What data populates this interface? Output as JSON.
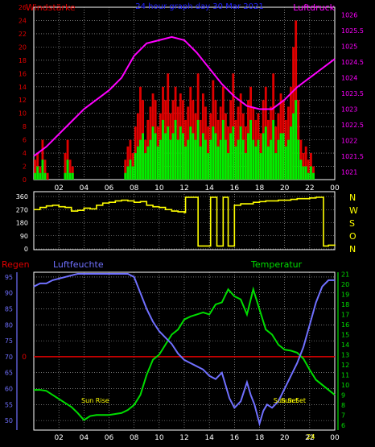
{
  "colors": {
    "wind": "#e00000",
    "gust": "#00ee00",
    "pressure": "#ff00ff",
    "direction": "#ffff00",
    "humidity": "#7070ff",
    "temperature": "#00dd00",
    "rain": "#e00000",
    "frame": "#ffffff",
    "grid": "#b8b8b8"
  },
  "chart_data": [
    {
      "type": "bar",
      "title": "24 hour graph day 30 Mar 2021",
      "left_label": "Windstärke",
      "right_label": "Luftdruck",
      "x_ticks": [
        "02",
        "04",
        "06",
        "08",
        "10",
        "12",
        "14",
        "16",
        "18",
        "20",
        "22",
        "00"
      ],
      "y_left_ticks": [
        "0",
        "2",
        "4",
        "6",
        "8",
        "10",
        "12",
        "14",
        "16",
        "18",
        "20",
        "22",
        "24",
        "26"
      ],
      "y_left_range": [
        0,
        26
      ],
      "y_right_ticks": [
        "1021",
        "1021.5",
        "1022",
        "1022.5",
        "1023",
        "1023.5",
        "1024",
        "1024.5",
        "1025",
        "1025.5",
        "1026"
      ],
      "y_right_range": [
        1020.75,
        1026.25
      ],
      "grid": true,
      "series": [
        {
          "kind": "bar",
          "role": "wind",
          "x": [
            0.1,
            0.3,
            0.5,
            0.7,
            0.9,
            1.1,
            1.3,
            1.5,
            1.7,
            1.9,
            2.1,
            2.3,
            2.5,
            2.7,
            2.9,
            3.1,
            3.3,
            3.5,
            3.7,
            3.9,
            4.1,
            4.3,
            4.5,
            4.7,
            4.9,
            5.1,
            5.3,
            5.5,
            5.7,
            5.9,
            6.1,
            6.3,
            6.5,
            6.7,
            6.9,
            7.1,
            7.3,
            7.5,
            7.7,
            7.9,
            8.1,
            8.3,
            8.5,
            8.7,
            8.9,
            9.1,
            9.3,
            9.5,
            9.7,
            9.9,
            10.1,
            10.3,
            10.5,
            10.7,
            10.9,
            11.1,
            11.3,
            11.5,
            11.7,
            11.9,
            12.1,
            12.3,
            12.5,
            12.7,
            12.9,
            13.1,
            13.3,
            13.5,
            13.7,
            13.9,
            14.1,
            14.3,
            14.5,
            14.7,
            14.9,
            15.1,
            15.3,
            15.5,
            15.7,
            15.9,
            16.1,
            16.3,
            16.5,
            16.7,
            16.9,
            17.1,
            17.3,
            17.5,
            17.7,
            17.9,
            18.1,
            18.3,
            18.5,
            18.7,
            18.9,
            19.1,
            19.3,
            19.5,
            19.7,
            19.9,
            20.1,
            20.3,
            20.5,
            20.7,
            20.9,
            21.1,
            21.3,
            21.5,
            21.7,
            21.9,
            22.1,
            22.3,
            22.5,
            22.7,
            22.9,
            23.1,
            23.3,
            23.5,
            23.7,
            23.9
          ],
          "values": [
            3,
            4,
            2,
            6,
            3,
            1,
            0,
            0,
            0,
            0,
            0,
            0,
            4,
            6,
            3,
            2,
            0,
            0,
            0,
            0,
            0,
            0,
            0,
            0,
            0,
            0,
            0,
            0,
            0,
            0,
            0,
            0,
            0,
            0,
            0,
            0,
            3,
            5,
            6,
            4,
            8,
            10,
            14,
            12,
            6,
            9,
            11,
            13,
            12,
            8,
            10,
            14,
            12,
            16,
            10,
            12,
            14,
            11,
            13,
            12,
            9,
            11,
            14,
            12,
            10,
            16,
            9,
            13,
            11,
            8,
            10,
            15,
            12,
            9,
            11,
            14,
            10,
            8,
            12,
            16,
            9,
            11,
            13,
            10,
            8,
            12,
            14,
            11,
            9,
            10,
            7,
            12,
            14,
            9,
            11,
            16,
            8,
            10,
            13,
            12,
            9,
            11,
            14,
            20,
            24,
            12,
            6,
            4,
            5,
            3,
            4,
            2,
            0,
            0,
            0,
            0,
            0,
            0,
            0,
            0
          ]
        },
        {
          "kind": "bar",
          "role": "gust",
          "x": [
            0.1,
            0.3,
            0.5,
            0.7,
            0.9,
            1.1,
            1.3,
            1.5,
            1.7,
            1.9,
            2.1,
            2.3,
            2.5,
            2.7,
            2.9,
            3.1,
            3.3,
            3.5,
            3.7,
            3.9,
            4.1,
            4.3,
            4.5,
            4.7,
            4.9,
            5.1,
            5.3,
            5.5,
            5.7,
            5.9,
            6.1,
            6.3,
            6.5,
            6.7,
            6.9,
            7.1,
            7.3,
            7.5,
            7.7,
            7.9,
            8.1,
            8.3,
            8.5,
            8.7,
            8.9,
            9.1,
            9.3,
            9.5,
            9.7,
            9.9,
            10.1,
            10.3,
            10.5,
            10.7,
            10.9,
            11.1,
            11.3,
            11.5,
            11.7,
            11.9,
            12.1,
            12.3,
            12.5,
            12.7,
            12.9,
            13.1,
            13.3,
            13.5,
            13.7,
            13.9,
            14.1,
            14.3,
            14.5,
            14.7,
            14.9,
            15.1,
            15.3,
            15.5,
            15.7,
            15.9,
            16.1,
            16.3,
            16.5,
            16.7,
            16.9,
            17.1,
            17.3,
            17.5,
            17.7,
            17.9,
            18.1,
            18.3,
            18.5,
            18.7,
            18.9,
            19.1,
            19.3,
            19.5,
            19.7,
            19.9,
            20.1,
            20.3,
            20.5,
            20.7,
            20.9,
            21.1,
            21.3,
            21.5,
            21.7,
            21.9,
            22.1,
            22.3,
            22.5,
            22.7,
            22.9,
            23.1,
            23.3,
            23.5,
            23.7,
            23.9
          ],
          "values": [
            1,
            2,
            1,
            3,
            1,
            0,
            0,
            0,
            0,
            0,
            0,
            0,
            1,
            3,
            1,
            1,
            0,
            0,
            0,
            0,
            0,
            0,
            0,
            0,
            0,
            0,
            0,
            0,
            0,
            0,
            0,
            0,
            0,
            0,
            0,
            0,
            1,
            2,
            3,
            2,
            4,
            5,
            6,
            7,
            4,
            5,
            6,
            8,
            7,
            5,
            6,
            9,
            7,
            8,
            6,
            7,
            9,
            6,
            8,
            7,
            5,
            6,
            8,
            7,
            6,
            9,
            5,
            7,
            6,
            4,
            6,
            8,
            7,
            5,
            6,
            9,
            6,
            4,
            7,
            8,
            5,
            6,
            8,
            6,
            4,
            7,
            9,
            6,
            5,
            6,
            4,
            7,
            8,
            5,
            6,
            9,
            4,
            6,
            7,
            7,
            5,
            6,
            8,
            10,
            12,
            6,
            3,
            2,
            2,
            1,
            2,
            1,
            0,
            0,
            0,
            0,
            0,
            0,
            0,
            0
          ]
        },
        {
          "kind": "line",
          "role": "pressure",
          "axis": "right",
          "x": [
            0,
            1,
            2,
            3,
            4,
            5,
            6,
            7,
            8,
            9,
            10,
            11,
            12,
            13,
            14,
            15,
            16,
            17,
            18,
            19,
            20,
            21,
            22,
            23,
            24
          ],
          "values": [
            1021.5,
            1021.8,
            1022.2,
            1022.6,
            1023.0,
            1023.3,
            1023.6,
            1024.0,
            1024.7,
            1025.1,
            1025.2,
            1025.3,
            1025.2,
            1024.8,
            1024.3,
            1023.8,
            1023.4,
            1023.1,
            1023.0,
            1023.0,
            1023.3,
            1023.7,
            1024.0,
            1024.3,
            1024.6
          ]
        }
      ]
    },
    {
      "type": "line",
      "title": "",
      "right_letters": [
        "N",
        "W",
        "S",
        "O",
        "N"
      ],
      "x_ticks": [
        "02",
        "04",
        "06",
        "08",
        "10",
        "12",
        "14",
        "16",
        "18",
        "20",
        "22",
        "00"
      ],
      "y_left_ticks": [
        "0",
        "90",
        "180",
        "270",
        "360"
      ],
      "y_range": [
        0,
        360
      ],
      "grid": true,
      "series": [
        {
          "role": "direction",
          "x": [
            0,
            0.5,
            1,
            1.5,
            2,
            2.5,
            3,
            3.5,
            4,
            4.5,
            5,
            5.5,
            6,
            6.5,
            7,
            7.5,
            8,
            8.5,
            9,
            9.5,
            10,
            10.5,
            11,
            11.5,
            12,
            12.1,
            12.5,
            13,
            13.1,
            13.5,
            14,
            14.1,
            14.5,
            14.6,
            15,
            15.1,
            15.4,
            15.5,
            15.9,
            16,
            16.3,
            16.5,
            17,
            17.5,
            18,
            18.5,
            19,
            19.5,
            20,
            20.5,
            21,
            21.5,
            22,
            22.5,
            23,
            23.1,
            23.5,
            24
          ],
          "values": [
            270,
            285,
            295,
            300,
            290,
            285,
            260,
            265,
            280,
            275,
            300,
            315,
            320,
            330,
            335,
            330,
            320,
            325,
            300,
            290,
            285,
            270,
            260,
            255,
            250,
            355,
            355,
            355,
            20,
            20,
            20,
            355,
            355,
            20,
            20,
            355,
            355,
            20,
            20,
            300,
            300,
            310,
            310,
            320,
            325,
            330,
            330,
            335,
            335,
            340,
            345,
            345,
            350,
            355,
            355,
            20,
            25,
            30
          ]
        }
      ]
    },
    {
      "type": "line",
      "title": "",
      "legend": [
        "Regen",
        "Luftfeuchte",
        "Temperatur"
      ],
      "x_ticks": [
        "02",
        "04",
        "06",
        "08",
        "10",
        "12",
        "14",
        "16",
        "18",
        "20",
        "22",
        "00"
      ],
      "y_left_ticks": [
        "50",
        "55",
        "60",
        "65",
        "70",
        "75",
        "80",
        "85",
        "90",
        "95"
      ],
      "y_left_range": [
        47,
        96.5
      ],
      "rain_marker": "0",
      "rain_marker_value": 70,
      "y_right_ticks": [
        "6",
        "7",
        "8",
        "9",
        "10",
        "11",
        "12",
        "13",
        "14",
        "15",
        "16",
        "17",
        "18",
        "19",
        "20",
        "21"
      ],
      "y_right_range": [
        5.5,
        21.2
      ],
      "grid": true,
      "annotations": [
        {
          "text": "Sun Rise",
          "x": 4.9
        },
        {
          "text": "Sun Set",
          "x": 20.1
        },
        {
          "text": "Sun Set",
          "x": 20.7
        },
        {
          "text": "24",
          "x": 22.1
        }
      ],
      "series": [
        {
          "role": "humidity",
          "axis": "left",
          "x": [
            0,
            0.5,
            1,
            1.5,
            2,
            2.5,
            3,
            3.5,
            4,
            4.5,
            5,
            5.5,
            6,
            6.5,
            7,
            7.5,
            8,
            8.5,
            9,
            9.5,
            10,
            10.5,
            11,
            11.5,
            12,
            12.5,
            13,
            13.5,
            14,
            14.5,
            15,
            15.3,
            15.6,
            16,
            16.5,
            17,
            17.3,
            17.6,
            18,
            18.3,
            18.6,
            19,
            19.5,
            20,
            20.5,
            21,
            21.5,
            22,
            22.5,
            23,
            23.5,
            24
          ],
          "values": [
            92,
            93,
            93,
            94,
            94.5,
            95,
            95.5,
            96,
            96,
            96,
            96,
            96,
            96,
            96,
            96,
            96,
            95,
            90,
            85,
            81,
            78,
            76,
            74,
            71,
            69,
            68,
            67,
            66,
            64,
            63,
            65,
            61,
            57,
            54,
            56,
            62,
            58,
            55,
            49,
            53,
            55,
            54,
            56,
            60,
            64,
            68,
            73,
            80,
            87,
            92,
            94,
            94
          ]
        },
        {
          "role": "temperature",
          "axis": "right",
          "x": [
            0,
            0.5,
            1,
            1.5,
            2,
            2.5,
            3,
            3.5,
            4,
            4.5,
            5,
            5.5,
            6,
            6.5,
            7,
            7.5,
            8,
            8.5,
            9,
            9.5,
            10,
            10.5,
            11,
            11.5,
            12,
            12.5,
            13,
            13.5,
            14,
            14.5,
            15,
            15.5,
            16,
            16.5,
            17,
            17.5,
            18,
            18.5,
            19,
            19.5,
            20,
            20.5,
            21,
            21.5,
            22,
            22.5,
            23,
            23.5,
            24
          ],
          "values": [
            9.5,
            9.5,
            9.4,
            9.0,
            8.6,
            8.2,
            7.8,
            7.2,
            6.5,
            6.9,
            7.0,
            7.0,
            7.0,
            7.1,
            7.2,
            7.5,
            8.0,
            9.0,
            11.0,
            12.5,
            13.0,
            14.0,
            15.0,
            15.5,
            16.5,
            16.8,
            17.0,
            17.2,
            17.0,
            18.0,
            18.2,
            19.5,
            18.8,
            18.5,
            17.0,
            19.5,
            17.5,
            15.5,
            15.0,
            14.0,
            13.5,
            13.4,
            13.2,
            12.6,
            11.5,
            10.5,
            10.0,
            9.5,
            9.0
          ]
        }
      ]
    }
  ]
}
